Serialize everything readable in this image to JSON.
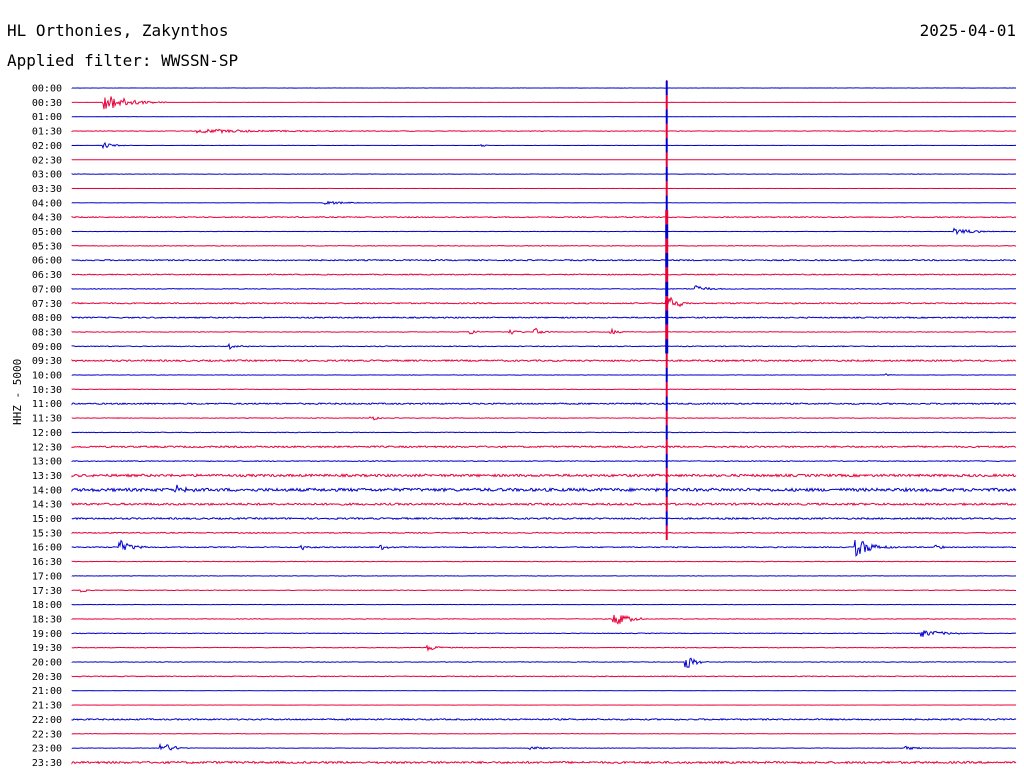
{
  "header": {
    "station": "HL Orthonies, Zakynthos",
    "filter": "Applied filter: WWSSN-SP",
    "date": "2025-04-01",
    "channel": "HHZ - 5000"
  },
  "colors": {
    "even_row": "#0000cc",
    "odd_row": "#e8003a",
    "event_marker": "#e8003a"
  },
  "chart_data": {
    "type": "line",
    "title": "HL Orthonies, Zakynthos",
    "subtitle": "Applied filter: WWSSN-SP",
    "ylabel": "HHZ - 5000",
    "grid": false,
    "row_interval_minutes": 30,
    "rows": [
      "00:00",
      "00:30",
      "01:00",
      "01:30",
      "02:00",
      "02:30",
      "03:00",
      "03:30",
      "04:00",
      "04:30",
      "05:00",
      "05:30",
      "06:00",
      "06:30",
      "07:00",
      "07:30",
      "08:00",
      "08:30",
      "09:00",
      "09:30",
      "10:00",
      "10:30",
      "11:00",
      "11:30",
      "12:00",
      "12:30",
      "13:00",
      "13:30",
      "14:00",
      "14:30",
      "15:00",
      "15:30",
      "16:00",
      "16:30",
      "17:00",
      "17:30",
      "18:00",
      "18:30",
      "19:00",
      "19:30",
      "20:00",
      "20:30",
      "21:00",
      "21:30",
      "22:00",
      "22:30",
      "23:00",
      "23:30"
    ],
    "noise_level": [
      0.1,
      0.05,
      0.05,
      0.3,
      0.1,
      0.05,
      0.2,
      0.05,
      0.1,
      0.5,
      0.2,
      0.3,
      0.6,
      0.5,
      0.3,
      0.6,
      0.6,
      0.3,
      0.4,
      0.8,
      0.2,
      0.3,
      0.7,
      0.3,
      0.3,
      0.8,
      0.4,
      1.2,
      1.5,
      1.0,
      0.8,
      0.5,
      0.5,
      0.3,
      0.2,
      0.3,
      0.2,
      0.3,
      0.3,
      0.3,
      0.3,
      0.4,
      0.1,
      0.1,
      0.7,
      0.2,
      0.2,
      1.0
    ],
    "events": [
      {
        "row": 1,
        "minute": 1,
        "amplitude": 10,
        "duration_minutes": 2
      },
      {
        "row": 3,
        "minute": 4,
        "amplitude": 2,
        "duration_minutes": 7
      },
      {
        "row": 4,
        "minute": 1,
        "amplitude": 3,
        "duration_minutes": 1
      },
      {
        "row": 4,
        "minute": 13,
        "amplitude": 2,
        "duration_minutes": 0.3
      },
      {
        "row": 8,
        "minute": 8,
        "amplitude": 2,
        "duration_minutes": 2
      },
      {
        "row": 10,
        "minute": 28,
        "amplitude": 3,
        "duration_minutes": 2
      },
      {
        "row": 15,
        "minute": 18.9,
        "amplitude": 10,
        "duration_minutes": 1
      },
      {
        "row": 14,
        "minute": 19.8,
        "amplitude": 4,
        "duration_minutes": 1
      },
      {
        "row": 17,
        "minute": 12.6,
        "amplitude": 4,
        "duration_minutes": 0.6
      },
      {
        "row": 17,
        "minute": 13.9,
        "amplitude": 4,
        "duration_minutes": 0.6
      },
      {
        "row": 17,
        "minute": 14.7,
        "amplitude": 5,
        "duration_minutes": 0.6
      },
      {
        "row": 17,
        "minute": 17.1,
        "amplitude": 4,
        "duration_minutes": 0.6
      },
      {
        "row": 18,
        "minute": 5,
        "amplitude": 3,
        "duration_minutes": 1
      },
      {
        "row": 20,
        "minute": 25.8,
        "amplitude": 2,
        "duration_minutes": 0.4
      },
      {
        "row": 23,
        "minute": 9.5,
        "amplitude": 4,
        "duration_minutes": 0.4
      },
      {
        "row": 28,
        "minute": 3.3,
        "amplitude": 4,
        "duration_minutes": 1
      },
      {
        "row": 32,
        "minute": 1.5,
        "amplitude": 8,
        "duration_minutes": 1
      },
      {
        "row": 32,
        "minute": 7.3,
        "amplitude": 4,
        "duration_minutes": 0.6
      },
      {
        "row": 32,
        "minute": 9.8,
        "amplitude": 3,
        "duration_minutes": 0.6
      },
      {
        "row": 32,
        "minute": 24.9,
        "amplitude": 10,
        "duration_minutes": 1.5
      },
      {
        "row": 32,
        "minute": 27.4,
        "amplitude": 3,
        "duration_minutes": 0.6
      },
      {
        "row": 35,
        "minute": 0.3,
        "amplitude": 2,
        "duration_minutes": 0.6
      },
      {
        "row": 37,
        "minute": 17.2,
        "amplitude": 9,
        "duration_minutes": 1.2
      },
      {
        "row": 38,
        "minute": 27.0,
        "amplitude": 4,
        "duration_minutes": 2
      },
      {
        "row": 39,
        "minute": 11.3,
        "amplitude": 3,
        "duration_minutes": 1.2
      },
      {
        "row": 40,
        "minute": 19.5,
        "amplitude": 8,
        "duration_minutes": 0.8
      },
      {
        "row": 46,
        "minute": 2.8,
        "amplitude": 7,
        "duration_minutes": 1
      },
      {
        "row": 46,
        "minute": 14.5,
        "amplitude": 2,
        "duration_minutes": 1.5
      },
      {
        "row": 46,
        "minute": 26.5,
        "amplitude": 2,
        "duration_minutes": 1.2
      },
      {
        "row": 47,
        "minute": 10.2,
        "amplitude": 2,
        "duration_minutes": 0.5
      }
    ],
    "marker": {
      "minute": 18.9,
      "from_row": 0,
      "to_row": 31
    }
  }
}
